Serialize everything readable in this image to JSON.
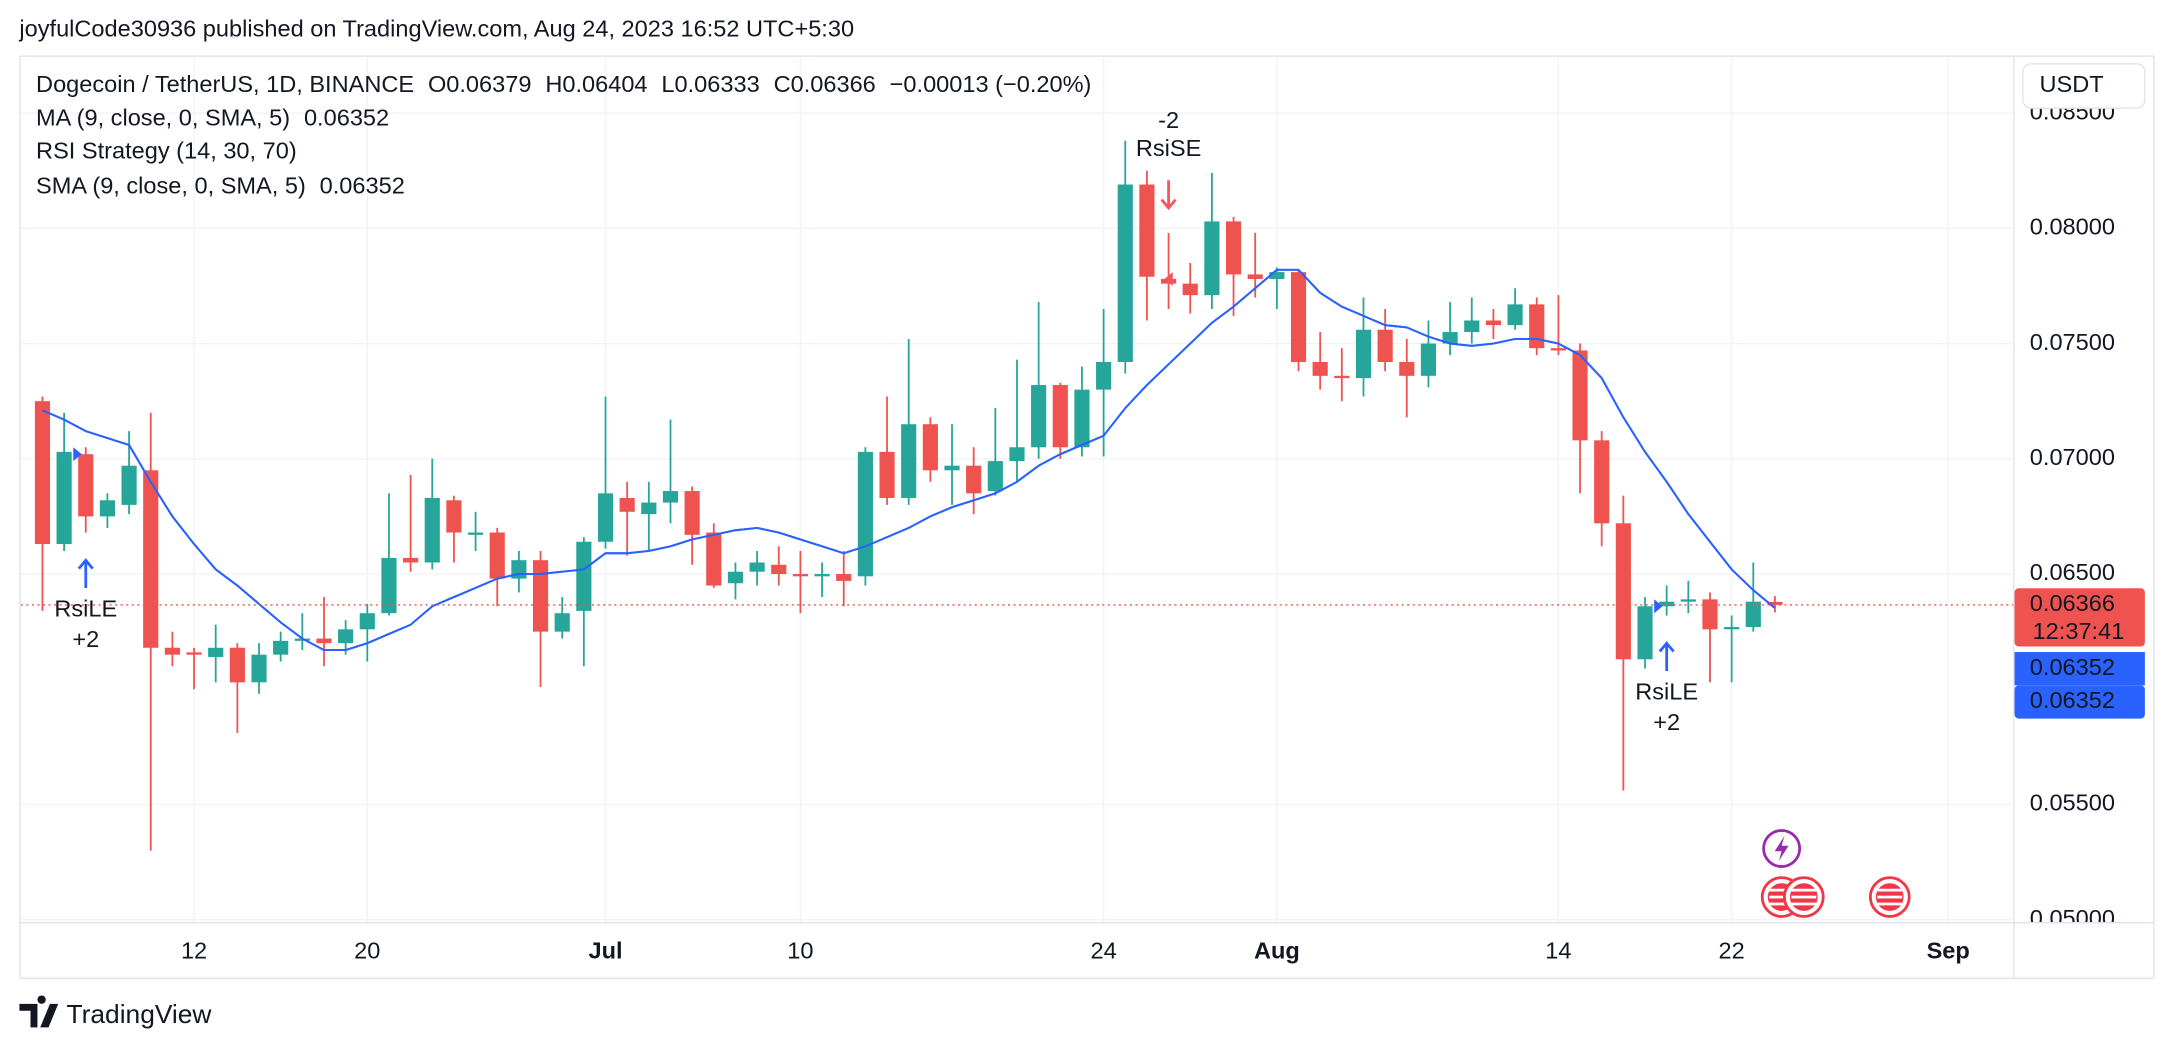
{
  "header": "joyfulCode30936 published on TradingView.com, Aug 24, 2023 16:52 UTC+5:30",
  "footer": "TradingView",
  "chart_data": {
    "type": "candlestick",
    "symbol": "Dogecoin / TetherUS, 1D, BINANCE",
    "ohlc_labels": [
      "O",
      "H",
      "L",
      "C"
    ],
    "change": "−0.00013 (−0.20%)",
    "currency": "USDT",
    "countdown": "12:37:41",
    "up_color": "#26a69a",
    "down_color": "#ef5350",
    "grid": true,
    "xlim": [
      "2023-06-04",
      "2023-09-04"
    ],
    "xticks": [
      {
        "value": "2023-06-12",
        "label": "12"
      },
      {
        "value": "2023-06-20",
        "label": "20"
      },
      {
        "value": "2023-07-01",
        "label": "Jul"
      },
      {
        "value": "2023-07-10",
        "label": "10"
      },
      {
        "value": "2023-07-24",
        "label": "24"
      },
      {
        "value": "2023-08-01",
        "label": "Aug"
      },
      {
        "value": "2023-08-14",
        "label": "14"
      },
      {
        "value": "2023-08-22",
        "label": "22"
      },
      {
        "value": "2023-09-01",
        "label": "Sep"
      }
    ],
    "ylim": [
      0.0499,
      0.0875
    ],
    "yticks": [
      {
        "value": 0.05,
        "label": "0.05000"
      },
      {
        "value": 0.055,
        "label": "0.05500"
      },
      {
        "value": 0.065,
        "label": "0.06500"
      },
      {
        "value": 0.07,
        "label": "0.07000"
      },
      {
        "value": 0.075,
        "label": "0.07500"
      },
      {
        "value": 0.08,
        "label": "0.08000"
      },
      {
        "value": 0.085,
        "label": "0.08500"
      }
    ],
    "x": [
      "2023-06-05",
      "2023-06-06",
      "2023-06-07",
      "2023-06-08",
      "2023-06-09",
      "2023-06-10",
      "2023-06-11",
      "2023-06-12",
      "2023-06-13",
      "2023-06-14",
      "2023-06-15",
      "2023-06-16",
      "2023-06-17",
      "2023-06-18",
      "2023-06-19",
      "2023-06-20",
      "2023-06-21",
      "2023-06-22",
      "2023-06-23",
      "2023-06-24",
      "2023-06-25",
      "2023-06-26",
      "2023-06-27",
      "2023-06-28",
      "2023-06-29",
      "2023-06-30",
      "2023-07-01",
      "2023-07-02",
      "2023-07-03",
      "2023-07-04",
      "2023-07-05",
      "2023-07-06",
      "2023-07-07",
      "2023-07-08",
      "2023-07-09",
      "2023-07-10",
      "2023-07-11",
      "2023-07-12",
      "2023-07-13",
      "2023-07-14",
      "2023-07-15",
      "2023-07-16",
      "2023-07-17",
      "2023-07-18",
      "2023-07-19",
      "2023-07-20",
      "2023-07-21",
      "2023-07-22",
      "2023-07-23",
      "2023-07-24",
      "2023-07-25",
      "2023-07-26",
      "2023-07-27",
      "2023-07-28",
      "2023-07-29",
      "2023-07-30",
      "2023-07-31",
      "2023-08-01",
      "2023-08-02",
      "2023-08-03",
      "2023-08-04",
      "2023-08-05",
      "2023-08-06",
      "2023-08-07",
      "2023-08-08",
      "2023-08-09",
      "2023-08-10",
      "2023-08-11",
      "2023-08-12",
      "2023-08-13",
      "2023-08-14",
      "2023-08-15",
      "2023-08-16",
      "2023-08-17",
      "2023-08-18",
      "2023-08-19",
      "2023-08-20",
      "2023-08-21",
      "2023-08-22",
      "2023-08-23",
      "2023-08-24"
    ],
    "open": [
      0.0725,
      0.0663,
      0.0702,
      0.0675,
      0.068,
      0.0695,
      0.0618,
      0.0616,
      0.0614,
      0.0618,
      0.0603,
      0.0615,
      0.0621,
      0.0622,
      0.062,
      0.0626,
      0.0633,
      0.0657,
      0.0655,
      0.0682,
      0.0667,
      0.0668,
      0.0648,
      0.0656,
      0.0625,
      0.0634,
      0.0664,
      0.0683,
      0.0676,
      0.0681,
      0.0686,
      0.0668,
      0.0646,
      0.0651,
      0.0654,
      0.065,
      0.0649,
      0.065,
      0.0649,
      0.0703,
      0.0683,
      0.0715,
      0.0695,
      0.0697,
      0.0686,
      0.0699,
      0.0705,
      0.0732,
      0.0705,
      0.073,
      0.0742,
      0.0819,
      0.0778,
      0.0776,
      0.0771,
      0.0803,
      0.078,
      0.0778,
      0.0781,
      0.0742,
      0.0736,
      0.0735,
      0.0756,
      0.0742,
      0.0736,
      0.075,
      0.0755,
      0.076,
      0.0758,
      0.0767,
      0.0748,
      0.0747,
      0.0708,
      0.0672,
      0.0613,
      0.0636,
      0.0638,
      0.0639,
      0.0626,
      0.0627,
      0.06379
    ],
    "high": [
      0.0727,
      0.072,
      0.0705,
      0.0685,
      0.0712,
      0.072,
      0.0625,
      0.0618,
      0.0628,
      0.062,
      0.062,
      0.0625,
      0.0633,
      0.064,
      0.063,
      0.0637,
      0.0685,
      0.0693,
      0.07,
      0.0684,
      0.0677,
      0.067,
      0.066,
      0.066,
      0.064,
      0.0666,
      0.0727,
      0.069,
      0.069,
      0.0717,
      0.0688,
      0.0672,
      0.0655,
      0.066,
      0.0662,
      0.066,
      0.0655,
      0.066,
      0.0705,
      0.0727,
      0.0752,
      0.0718,
      0.0715,
      0.0705,
      0.0722,
      0.0743,
      0.0768,
      0.0733,
      0.074,
      0.0765,
      0.0838,
      0.0825,
      0.0798,
      0.0785,
      0.0824,
      0.0805,
      0.0798,
      0.0783,
      0.0782,
      0.0755,
      0.0748,
      0.077,
      0.0765,
      0.0752,
      0.076,
      0.0768,
      0.077,
      0.0765,
      0.0774,
      0.077,
      0.0771,
      0.075,
      0.0712,
      0.0684,
      0.064,
      0.0645,
      0.0647,
      0.0642,
      0.0632,
      0.0655,
      0.06404
    ],
    "low": [
      0.0634,
      0.066,
      0.0668,
      0.067,
      0.0676,
      0.053,
      0.061,
      0.06,
      0.0603,
      0.0581,
      0.0598,
      0.0612,
      0.0617,
      0.061,
      0.0615,
      0.0612,
      0.0632,
      0.0651,
      0.0652,
      0.0655,
      0.066,
      0.0636,
      0.0642,
      0.0601,
      0.0622,
      0.061,
      0.0661,
      0.0658,
      0.066,
      0.0672,
      0.0654,
      0.0644,
      0.0639,
      0.0645,
      0.0645,
      0.0633,
      0.064,
      0.0636,
      0.0645,
      0.068,
      0.068,
      0.069,
      0.068,
      0.0676,
      0.0684,
      0.069,
      0.07,
      0.07,
      0.0701,
      0.0701,
      0.0737,
      0.076,
      0.0765,
      0.0763,
      0.0765,
      0.0762,
      0.077,
      0.0765,
      0.0738,
      0.073,
      0.0725,
      0.0727,
      0.0738,
      0.0718,
      0.0731,
      0.0745,
      0.075,
      0.0752,
      0.0756,
      0.0745,
      0.0745,
      0.0685,
      0.0662,
      0.0556,
      0.0609,
      0.0632,
      0.0633,
      0.0603,
      0.0603,
      0.0625,
      0.06333
    ],
    "close": [
      0.0663,
      0.0703,
      0.0675,
      0.0682,
      0.0697,
      0.0618,
      0.0615,
      0.0615,
      0.0618,
      0.0603,
      0.0615,
      0.0621,
      0.0622,
      0.062,
      0.0626,
      0.0633,
      0.0657,
      0.0655,
      0.0683,
      0.0668,
      0.0668,
      0.0648,
      0.0656,
      0.0625,
      0.0633,
      0.0664,
      0.0685,
      0.0677,
      0.0681,
      0.0686,
      0.0667,
      0.0645,
      0.0651,
      0.0655,
      0.065,
      0.0649,
      0.065,
      0.0647,
      0.0703,
      0.0683,
      0.0715,
      0.0695,
      0.0697,
      0.0685,
      0.0699,
      0.0705,
      0.0732,
      0.0705,
      0.073,
      0.0742,
      0.0819,
      0.0779,
      0.0776,
      0.0771,
      0.0803,
      0.078,
      0.0778,
      0.0781,
      0.0742,
      0.0736,
      0.0735,
      0.0756,
      0.0742,
      0.0736,
      0.075,
      0.0755,
      0.076,
      0.0758,
      0.0767,
      0.0748,
      0.0747,
      0.0708,
      0.0672,
      0.0613,
      0.0636,
      0.0638,
      0.0639,
      0.0626,
      0.0627,
      0.0638,
      0.06366
    ],
    "series": [
      {
        "name": "MA (9, close, 0, SMA, 5)",
        "color": "#2962ff",
        "values": [
          0.0721,
          0.0717,
          0.0712,
          0.0709,
          0.0706,
          0.069,
          0.0675,
          0.0663,
          0.0652,
          0.0645,
          0.0637,
          0.0629,
          0.0622,
          0.0617,
          0.0617,
          0.062,
          0.0624,
          0.0628,
          0.0636,
          0.064,
          0.0644,
          0.0648,
          0.065,
          0.065,
          0.0651,
          0.0652,
          0.0659,
          0.0659,
          0.066,
          0.0662,
          0.0665,
          0.0667,
          0.0669,
          0.067,
          0.0668,
          0.0665,
          0.0662,
          0.0659,
          0.0662,
          0.0666,
          0.067,
          0.0675,
          0.0679,
          0.0682,
          0.0685,
          0.069,
          0.0697,
          0.0702,
          0.0706,
          0.071,
          0.0722,
          0.0732,
          0.0741,
          0.075,
          0.0759,
          0.0766,
          0.0774,
          0.0782,
          0.0782,
          0.0772,
          0.0766,
          0.0762,
          0.0758,
          0.0757,
          0.0753,
          0.075,
          0.0749,
          0.075,
          0.0752,
          0.0752,
          0.075,
          0.0745,
          0.0735,
          0.0718,
          0.0703,
          0.069,
          0.0676,
          0.0664,
          0.0652,
          0.0643,
          0.06352
        ]
      },
      {
        "name": "SMA (9, close, 0, SMA, 5)",
        "color": "#2962ff",
        "values": [
          0.0721,
          0.0717,
          0.0712,
          0.0709,
          0.0706,
          0.069,
          0.0675,
          0.0663,
          0.0652,
          0.0645,
          0.0637,
          0.0629,
          0.0622,
          0.0617,
          0.0617,
          0.062,
          0.0624,
          0.0628,
          0.0636,
          0.064,
          0.0644,
          0.0648,
          0.065,
          0.065,
          0.0651,
          0.0652,
          0.0659,
          0.0659,
          0.066,
          0.0662,
          0.0665,
          0.0667,
          0.0669,
          0.067,
          0.0668,
          0.0665,
          0.0662,
          0.0659,
          0.0662,
          0.0666,
          0.067,
          0.0675,
          0.0679,
          0.0682,
          0.0685,
          0.069,
          0.0697,
          0.0702,
          0.0706,
          0.071,
          0.0722,
          0.0732,
          0.0741,
          0.075,
          0.0759,
          0.0766,
          0.0774,
          0.0782,
          0.0782,
          0.0772,
          0.0766,
          0.0762,
          0.0758,
          0.0757,
          0.0753,
          0.075,
          0.0749,
          0.075,
          0.0752,
          0.0752,
          0.075,
          0.0745,
          0.0735,
          0.0718,
          0.0703,
          0.069,
          0.0676,
          0.0664,
          0.0652,
          0.0643,
          0.06352
        ]
      }
    ],
    "strategy": {
      "name": "RSI Strategy (14, 30, 70)",
      "long_color": "#2962ff",
      "short_color": "#f7525f",
      "signals": [
        {
          "date": "2023-06-07",
          "side": "long",
          "label": "RsiLE",
          "qty": "+2"
        },
        {
          "date": "2023-07-27",
          "side": "short",
          "label": "RsiSE",
          "qty": "-2"
        },
        {
          "date": "2023-08-19",
          "side": "long",
          "label": "RsiLE",
          "qty": "+2"
        }
      ]
    }
  }
}
